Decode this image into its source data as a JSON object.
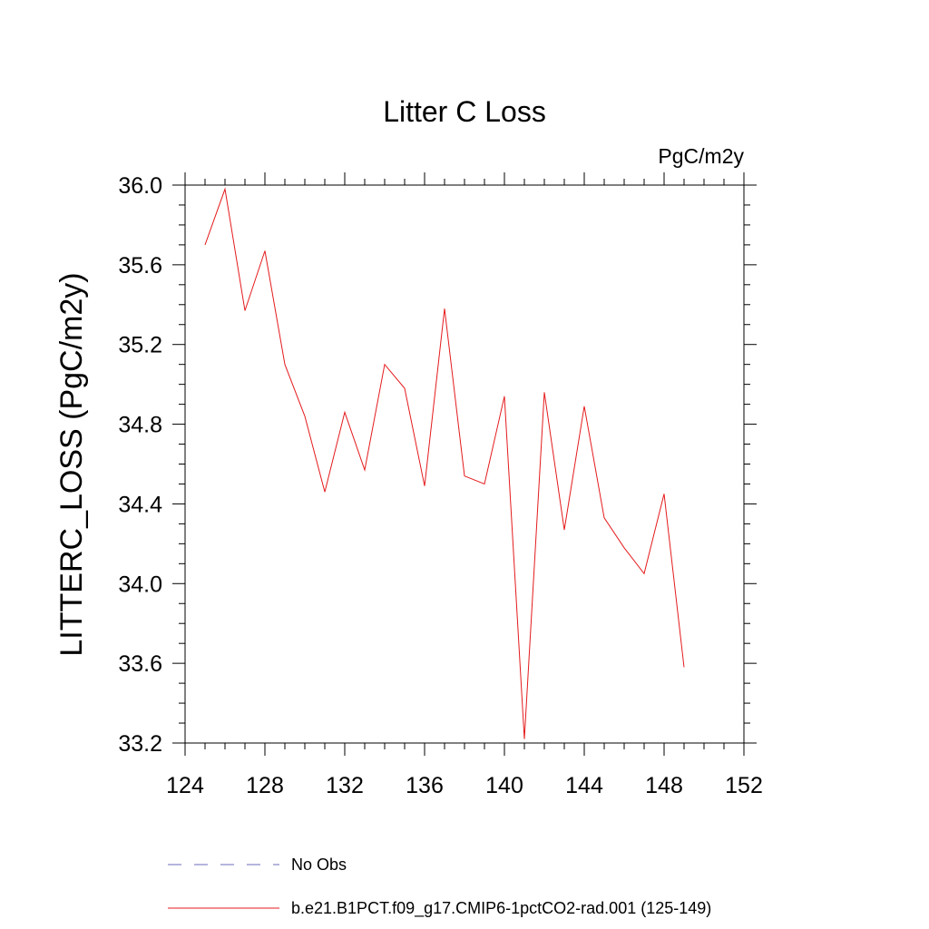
{
  "chart_data": {
    "type": "line",
    "title": "Litter C Loss",
    "units": "PgC/m2y",
    "xlabel": "",
    "ylabel": "LITTERC_LOSS  (PgC/m2y)",
    "xlim": [
      124,
      152
    ],
    "ylim": [
      33.2,
      36.0
    ],
    "x_ticks": [
      124,
      128,
      132,
      136,
      140,
      144,
      148,
      152
    ],
    "y_ticks": [
      33.2,
      33.6,
      34.0,
      34.4,
      34.8,
      35.2,
      35.6,
      36.0
    ],
    "x_tick_labels": [
      "124",
      "128",
      "132",
      "136",
      "140",
      "144",
      "148",
      "152"
    ],
    "y_tick_labels": [
      "33.2",
      "33.6",
      "34.0",
      "34.4",
      "34.8",
      "35.2",
      "35.6",
      "36.0"
    ],
    "grid": false,
    "legend_position": "bottom",
    "series": [
      {
        "name": "b.e21.B1PCT.f09_g17.CMIP6-1pctCO2-rad.001 (125-149)",
        "color": "#e41a1c",
        "line_style": "solid",
        "x": [
          125,
          126,
          127,
          128,
          129,
          130,
          131,
          132,
          133,
          134,
          135,
          136,
          137,
          138,
          139,
          140,
          141,
          142,
          143,
          144,
          145,
          146,
          147,
          148,
          149
        ],
        "y": [
          35.7,
          35.98,
          35.37,
          35.67,
          35.1,
          34.84,
          34.46,
          34.86,
          34.57,
          35.1,
          34.98,
          34.49,
          35.38,
          34.54,
          34.5,
          34.94,
          33.22,
          34.96,
          34.27,
          34.89,
          34.33,
          34.18,
          34.05,
          34.45,
          33.58
        ]
      }
    ],
    "legend": [
      {
        "label": "No Obs",
        "color": "#6b6bb8",
        "line_style": "dashed"
      },
      {
        "label": "b.e21.B1PCT.f09_g17.CMIP6-1pctCO2-rad.001 (125-149)",
        "color": "#e41a1c",
        "line_style": "solid"
      }
    ]
  }
}
